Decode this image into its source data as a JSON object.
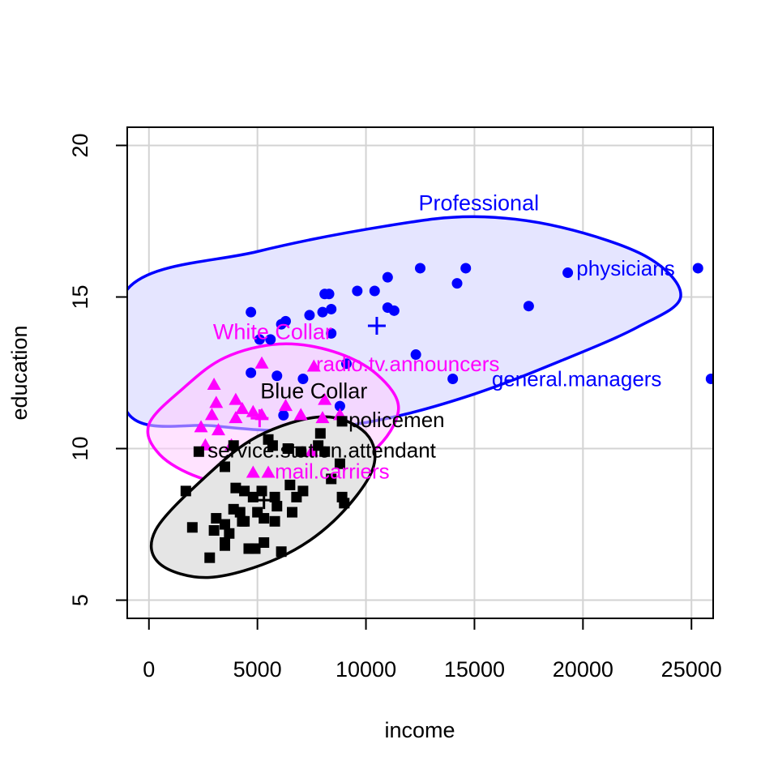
{
  "chart_data": {
    "type": "scatter",
    "title": "",
    "xlabel": "income",
    "ylabel": "education",
    "xlim": [
      -1000,
      26000
    ],
    "ylim": [
      4.4,
      20.6
    ],
    "xticks": [
      0,
      5000,
      10000,
      15000,
      20000,
      25000
    ],
    "yticks": [
      5,
      10,
      15,
      20
    ],
    "xtick_labels": [
      "0",
      "5000",
      "10000",
      "15000",
      "20000",
      "25000"
    ],
    "ytick_labels": [
      "5",
      "10",
      "15",
      "20"
    ],
    "grid": true,
    "colors": {
      "Professional": "#0000ff",
      "White Collar": "#ff00ff",
      "Blue Collar": "#000000"
    },
    "ellipses": [
      {
        "group": "Professional",
        "points": [
          [
            24500,
            15
          ],
          [
            23000,
            16.3
          ],
          [
            19000,
            17.3
          ],
          [
            15000,
            17.65
          ],
          [
            11000,
            17.35
          ],
          [
            5000,
            16.5
          ],
          [
            -1000,
            15.25
          ],
          [
            -1000,
            11.2
          ],
          [
            3000,
            10.75
          ],
          [
            7000,
            10.6
          ],
          [
            11000,
            11.0
          ],
          [
            15000,
            11.8
          ],
          [
            19000,
            12.9
          ],
          [
            22500,
            14.0
          ],
          [
            24500,
            15
          ]
        ],
        "fill": "#e5e5ff",
        "stroke": "#0000ff"
      },
      {
        "group": "White Collar",
        "points": [
          [
            11500,
            11.3
          ],
          [
            10500,
            12.45
          ],
          [
            8500,
            13.2
          ],
          [
            6000,
            13.45
          ],
          [
            3500,
            13.0
          ],
          [
            1600,
            12.0
          ],
          [
            0,
            10.8
          ],
          [
            500,
            9.8
          ],
          [
            2300,
            9.05
          ],
          [
            4800,
            8.7
          ],
          [
            7500,
            8.95
          ],
          [
            10300,
            9.9
          ],
          [
            11500,
            11.3
          ]
        ],
        "fill": "#ffccff",
        "fillOpacity": 0.55,
        "stroke": "#ff00ff"
      },
      {
        "group": "Blue Collar",
        "points": [
          [
            10300,
            9.3
          ],
          [
            10000,
            10.5
          ],
          [
            8000,
            11.05
          ],
          [
            5000,
            10.4
          ],
          [
            2500,
            9.0
          ],
          [
            300,
            7.3
          ],
          [
            500,
            6.2
          ],
          [
            2800,
            5.75
          ],
          [
            6000,
            6.4
          ],
          [
            8500,
            7.6
          ],
          [
            10300,
            9.3
          ]
        ],
        "fill": "#e5e5e5",
        "stroke": "#000000"
      }
    ],
    "series": [
      {
        "name": "Professional",
        "marker": "circle",
        "color": "#0000ff",
        "points": [
          [
            4700,
            14.5
          ],
          [
            5100,
            13.6
          ],
          [
            5600,
            13.6
          ],
          [
            6100,
            14.1
          ],
          [
            6300,
            14.2
          ],
          [
            7400,
            14.4
          ],
          [
            8000,
            14.5
          ],
          [
            8400,
            14.6
          ],
          [
            8100,
            15.1
          ],
          [
            8300,
            15.1
          ],
          [
            9600,
            15.2
          ],
          [
            10400,
            15.2
          ],
          [
            11000,
            15.65
          ],
          [
            12500,
            15.95
          ],
          [
            14200,
            15.45
          ],
          [
            14600,
            15.95
          ],
          [
            11000,
            14.65
          ],
          [
            11300,
            14.55
          ],
          [
            17500,
            14.7
          ],
          [
            19300,
            15.8
          ],
          [
            25300,
            15.95
          ],
          [
            25900,
            12.3
          ],
          [
            14000,
            12.3
          ],
          [
            12300,
            13.1
          ],
          [
            9100,
            12.8
          ],
          [
            7100,
            12.3
          ],
          [
            5900,
            12.4
          ],
          [
            4700,
            12.5
          ],
          [
            8800,
            11.4
          ],
          [
            6200,
            11.1
          ],
          [
            8400,
            13.8
          ]
        ]
      },
      {
        "name": "White Collar",
        "marker": "triangle",
        "color": "#ff00ff",
        "points": [
          [
            3000,
            12.1
          ],
          [
            5200,
            12.8
          ],
          [
            7600,
            12.7
          ],
          [
            3100,
            11.5
          ],
          [
            4000,
            11.6
          ],
          [
            4300,
            11.3
          ],
          [
            4800,
            11.2
          ],
          [
            5200,
            11.1
          ],
          [
            6300,
            11.4
          ],
          [
            7000,
            11.1
          ],
          [
            8100,
            11.6
          ],
          [
            8000,
            11.0
          ],
          [
            8800,
            11.1
          ],
          [
            2400,
            10.7
          ],
          [
            2900,
            11.1
          ],
          [
            3200,
            10.6
          ],
          [
            4000,
            11.0
          ],
          [
            2600,
            10.1
          ],
          [
            3800,
            10.1
          ],
          [
            7500,
            9.9
          ],
          [
            4800,
            9.2
          ],
          [
            5500,
            9.2
          ]
        ]
      },
      {
        "name": "Blue Collar",
        "marker": "square",
        "color": "#000000",
        "points": [
          [
            8900,
            10.9
          ],
          [
            7900,
            10.5
          ],
          [
            2300,
            9.9
          ],
          [
            3900,
            10.1
          ],
          [
            5700,
            10.1
          ],
          [
            6400,
            10.0
          ],
          [
            7000,
            9.9
          ],
          [
            7800,
            10.1
          ],
          [
            8100,
            9.9
          ],
          [
            5500,
            10.3
          ],
          [
            3500,
            9.4
          ],
          [
            8800,
            9.5
          ],
          [
            4000,
            8.7
          ],
          [
            4400,
            8.6
          ],
          [
            5200,
            8.6
          ],
          [
            6500,
            8.8
          ],
          [
            7100,
            8.6
          ],
          [
            8400,
            9.0
          ],
          [
            1700,
            8.6
          ],
          [
            4800,
            8.4
          ],
          [
            5800,
            8.4
          ],
          [
            6800,
            8.4
          ],
          [
            8900,
            8.4
          ],
          [
            9000,
            8.2
          ],
          [
            3900,
            8.0
          ],
          [
            4200,
            7.9
          ],
          [
            5000,
            7.9
          ],
          [
            5900,
            8.1
          ],
          [
            6600,
            7.9
          ],
          [
            4400,
            7.6
          ],
          [
            3100,
            7.7
          ],
          [
            3500,
            7.5
          ],
          [
            4300,
            7.6
          ],
          [
            5300,
            7.7
          ],
          [
            5800,
            7.6
          ],
          [
            2000,
            7.4
          ],
          [
            3000,
            7.3
          ],
          [
            3700,
            7.2
          ],
          [
            3500,
            6.9
          ],
          [
            4600,
            6.7
          ],
          [
            4900,
            6.7
          ],
          [
            5300,
            6.9
          ],
          [
            6100,
            6.6
          ],
          [
            2800,
            6.4
          ],
          [
            3500,
            6.8
          ]
        ]
      }
    ],
    "centroids": [
      {
        "group": "Professional",
        "x": 10500,
        "y": 14.05,
        "color": "#0000ff"
      },
      {
        "group": "White Collar",
        "x": 5100,
        "y": 11.0,
        "color": "#ff00ff"
      },
      {
        "group": "Blue Collar",
        "x": 5300,
        "y": 8.3,
        "color": "#000000"
      }
    ],
    "group_labels": [
      {
        "text": "Professional",
        "x": 15200,
        "y": 18.1,
        "color": "#0000ff"
      },
      {
        "text": "White Collar",
        "x": 5700,
        "y": 13.85,
        "color": "#ff00ff"
      },
      {
        "text": "Blue Collar",
        "x": 7600,
        "y": 11.9,
        "color": "#000000"
      }
    ],
    "point_labels": [
      {
        "text": "physicians",
        "x": 19700,
        "y": 15.95,
        "color": "#0000ff"
      },
      {
        "text": "general.managers",
        "x": 15800,
        "y": 12.3,
        "color": "#0000ff"
      },
      {
        "text": "radio.tv.announcers",
        "x": 7700,
        "y": 12.8,
        "color": "#ff00ff"
      },
      {
        "text": "policemen",
        "x": 9200,
        "y": 10.95,
        "color": "#000000"
      },
      {
        "text": "service.station.attendant",
        "x": 2700,
        "y": 9.95,
        "color": "#000000"
      },
      {
        "text": "mail.carriers",
        "x": 5800,
        "y": 9.25,
        "color": "#ff00ff"
      }
    ]
  }
}
